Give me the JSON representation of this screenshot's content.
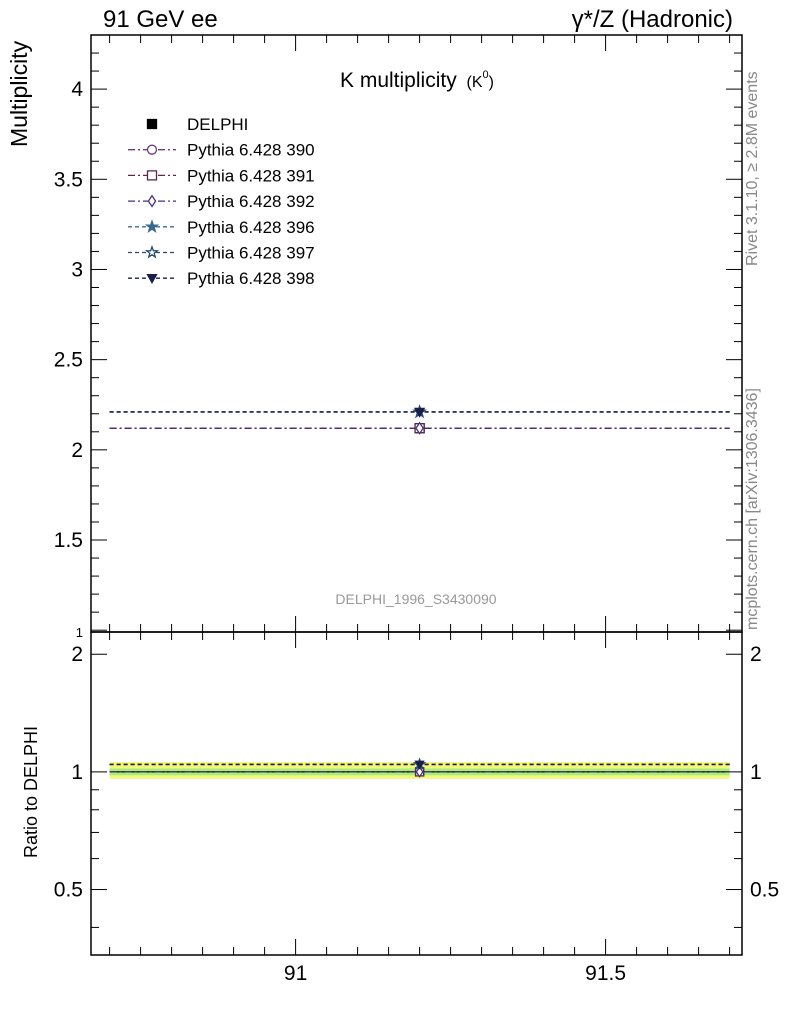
{
  "header": {
    "left": "91 GeV ee",
    "right": "γ*/Z (Hadronic)"
  },
  "side_text": {
    "rivet": "Rivet 3.1.10, ≥ 2.8M events",
    "mcplots": "mcplots.cern.ch [arXiv:1306.3436]"
  },
  "chart_data": {
    "type": "scatter",
    "title": "K multiplicity",
    "title_sub": "(K",
    "title_sup": "0",
    "title_close": ")",
    "analysis_label": "DELPHI_1996_S3430090",
    "ylabel": "Multiplicity",
    "ratio_ylabel": "Ratio to DELPHI",
    "xlim": [
      90.67,
      91.72
    ],
    "ylim": [
      0.99,
      4.3
    ],
    "ratio_ylim": [
      0.34,
      2.28
    ],
    "x_ticks": [
      "91",
      "91.5"
    ],
    "x_tick_values": [
      91,
      91.5
    ],
    "y_ticks": [
      "1",
      "1.5",
      "2",
      "2.5",
      "3",
      "3.5",
      "4"
    ],
    "y_tick_values": [
      1,
      1.5,
      2,
      2.5,
      3,
      3.5,
      4
    ],
    "ratio_ticks": [
      "0.5",
      "1",
      "2"
    ],
    "ratio_tick_values": [
      0.5,
      1,
      2
    ],
    "x_point": 91.2,
    "x_range": [
      90.7,
      91.7
    ],
    "data_band": [
      0.96,
      1.06
    ],
    "data_band_inner": [
      0.98,
      1.02
    ],
    "series": [
      {
        "name": "DELPHI",
        "y": 2.12,
        "ratio": 1.0,
        "marker": "square-filled",
        "color": "#000000",
        "dash": ""
      },
      {
        "name": "Pythia 6.428 390",
        "y": 2.12,
        "ratio": 1.0,
        "marker": "circle-open",
        "color": "#6a3f7a",
        "dash": "7,3,2,3"
      },
      {
        "name": "Pythia 6.428 391",
        "y": 2.12,
        "ratio": 1.0,
        "marker": "square-open",
        "color": "#5a2a4a",
        "dash": "7,3,2,3"
      },
      {
        "name": "Pythia 6.428 392",
        "y": 2.12,
        "ratio": 1.0,
        "marker": "diamond-open",
        "color": "#4a2f7a",
        "dash": "7,3,2,3"
      },
      {
        "name": "Pythia 6.428 396",
        "y": 2.21,
        "ratio": 1.045,
        "marker": "star-filled",
        "color": "#3a6a8a",
        "dash": "4,3"
      },
      {
        "name": "Pythia 6.428 397",
        "y": 2.21,
        "ratio": 1.045,
        "marker": "star-open",
        "color": "#2a4a6a",
        "dash": "4,3"
      },
      {
        "name": "Pythia 6.428 398",
        "y": 2.21,
        "ratio": 1.045,
        "marker": "triangle-down-filled",
        "color": "#1a1f4a",
        "dash": "4,3"
      }
    ]
  }
}
